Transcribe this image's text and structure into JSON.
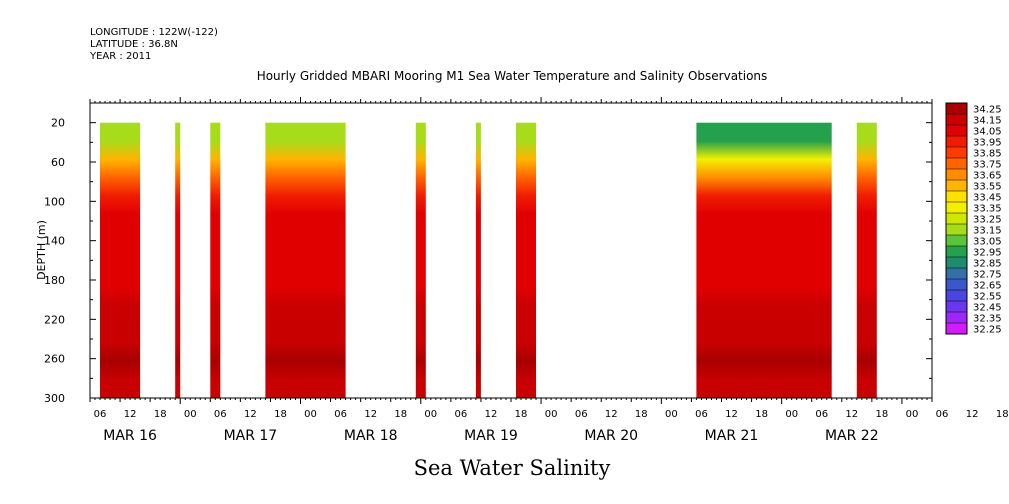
{
  "header": {
    "longitude": "LONGITUDE : 122W(-122)",
    "latitude": "LATITUDE : 36.8N",
    "year": "YEAR : 2011"
  },
  "chart_data": {
    "type": "heatmap",
    "title": "Hourly Gridded MBARI Mooring M1 Sea Water Temperature and Salinity Observations",
    "caption": "Sea Water Salinity",
    "ylabel": "DEPTH (m)",
    "yticks": [
      20,
      60,
      100,
      140,
      180,
      220,
      260,
      300
    ],
    "ylim": [
      300,
      0
    ],
    "day_labels": [
      "MAR 16",
      "MAR 17",
      "MAR 18",
      "MAR 19",
      "MAR 20",
      "MAR 21",
      "MAR 22"
    ],
    "hour_labels": [
      "06",
      "12",
      "18",
      "00",
      "06",
      "12",
      "18",
      "00",
      "06",
      "12",
      "18",
      "00",
      "06",
      "12",
      "18",
      "00",
      "06",
      "12",
      "18",
      "00",
      "06",
      "12",
      "18",
      "00",
      "06",
      "12",
      "18",
      "00",
      "06",
      "12",
      "18",
      "00"
    ],
    "x_start": "2011-03-16T06:00",
    "colorbar_labels": [
      "34.25",
      "34.15",
      "34.05",
      "33.95",
      "33.85",
      "33.75",
      "33.65",
      "33.55",
      "33.45",
      "33.35",
      "33.25",
      "33.15",
      "33.05",
      "32.95",
      "32.85",
      "32.75",
      "32.65",
      "32.55",
      "32.45",
      "32.35",
      "32.25"
    ],
    "colorbar_colors": [
      "#a80000",
      "#c80000",
      "#e00000",
      "#f01c00",
      "#ff3a00",
      "#ff6200",
      "#ff8c00",
      "#ffb400",
      "#ffe000",
      "#f2f000",
      "#cfe600",
      "#a6dc1a",
      "#5cc43a",
      "#25a04c",
      "#1f8c6e",
      "#3470a8",
      "#3a58c8",
      "#4a46e0",
      "#6a36f0",
      "#9c28f8",
      "#d21cff"
    ],
    "depths": [
      20,
      40,
      60,
      80,
      100,
      120,
      140,
      160,
      180,
      200,
      220,
      240,
      260,
      280,
      300
    ],
    "salinity_profile": [
      33.1,
      33.5,
      33.8,
      33.95,
      34.0,
      34.03,
      34.05,
      34.07,
      34.09,
      34.1,
      34.12,
      34.15,
      34.2,
      34.17,
      34.15
    ],
    "data_segments": [
      {
        "start": "2011-03-16T08:00",
        "end": "2011-03-16T16:00"
      },
      {
        "start": "2011-03-16T23:00",
        "end": "2011-03-17T00:00"
      },
      {
        "start": "2011-03-17T06:00",
        "end": "2011-03-17T08:00"
      },
      {
        "start": "2011-03-17T17:00",
        "end": "2011-03-18T09:00"
      },
      {
        "start": "2011-03-18T23:00",
        "end": "2011-03-19T01:00"
      },
      {
        "start": "2011-03-19T11:00",
        "end": "2011-03-19T12:00"
      },
      {
        "start": "2011-03-19T19:00",
        "end": "2011-03-19T23:00"
      },
      {
        "start": "2011-03-21T07:00",
        "end": "2011-03-22T10:00",
        "fresh_surface": true
      },
      {
        "start": "2011-03-22T15:00",
        "end": "2011-03-22T19:00"
      }
    ]
  }
}
